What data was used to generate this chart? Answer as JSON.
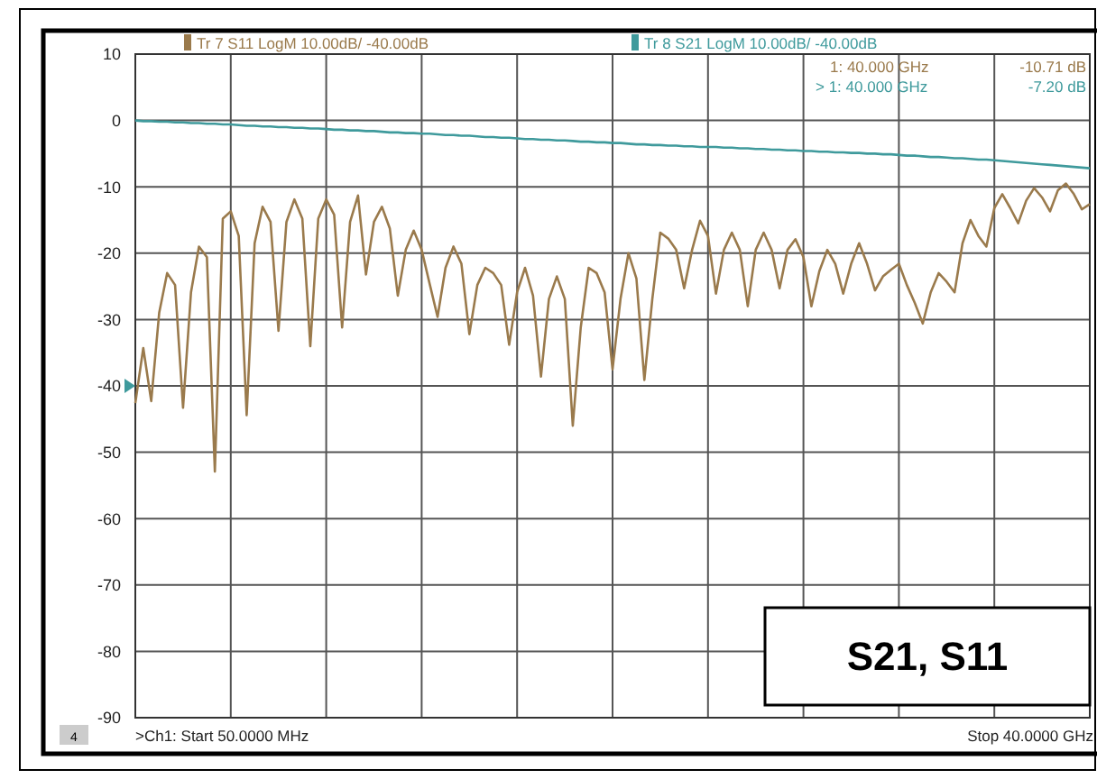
{
  "chart_data": {
    "type": "line",
    "categories": [
      null,
      null,
      null,
      null,
      null,
      null,
      null,
      null,
      null,
      null,
      null,
      null,
      null,
      null,
      null,
      null,
      null,
      null,
      null,
      null,
      null,
      null,
      null,
      null,
      null,
      null,
      null,
      null,
      null,
      null,
      null,
      null,
      null,
      null,
      null,
      null,
      null,
      null,
      null,
      null,
      null,
      null,
      null,
      null,
      null,
      null,
      null,
      null,
      null,
      null,
      null,
      null,
      null,
      null,
      null,
      null,
      null,
      null,
      null,
      null,
      null,
      null,
      null,
      null,
      null,
      null,
      null,
      null,
      null,
      null,
      null,
      null,
      null,
      null,
      null,
      null,
      null,
      null,
      null,
      null,
      null,
      null,
      null,
      null,
      null,
      null,
      null,
      null,
      null,
      null,
      null,
      null,
      null,
      null,
      null,
      null,
      null,
      null,
      null,
      null,
      null,
      null,
      null,
      null,
      null,
      null,
      null,
      null,
      null,
      null,
      null,
      null,
      null,
      null,
      null,
      null,
      null,
      null,
      null,
      null,
      null
    ],
    "ylim": [
      -90,
      10
    ],
    "yticks": [
      10,
      0,
      -10,
      -20,
      -30,
      -40,
      -50,
      -60,
      -70,
      -80,
      -90
    ],
    "tick_labels": "y",
    "grid": true,
    "legend": "top",
    "line_style": "solid",
    "series": [
      {
        "name": "Tr 7  S11 LogM 10.00dB/ -40.00dB",
        "color": "#9a7a4c",
        "values": [
          -42.6,
          -34.3,
          -42.3,
          -29,
          -23,
          -24.8,
          -43.3,
          -25.9,
          -19,
          -20.6,
          -52.9,
          -14.8,
          -13.7,
          -17.4,
          -44.4,
          -18.5,
          -13,
          -15.3,
          -31.7,
          -15.3,
          -11.9,
          -14.8,
          -34,
          -14.8,
          -11.9,
          -14.2,
          -31.2,
          -15.3,
          -11.3,
          -23.2,
          -15.3,
          -13,
          -16.3,
          -26.4,
          -19.5,
          -16.6,
          -19.5,
          -24.6,
          -29.6,
          -22.2,
          -19,
          -21.6,
          -32.2,
          -24.8,
          -22.2,
          -23,
          -24.8,
          -33.8,
          -25.9,
          -22.2,
          -26.4,
          -38.6,
          -26.9,
          -23.5,
          -26.9,
          -46,
          -31.2,
          -22.2,
          -23,
          -25.9,
          -37.5,
          -26.9,
          -20,
          -23.8,
          -39.1,
          -26.9,
          -16.9,
          -17.8,
          -19.5,
          -25.3,
          -19.5,
          -15.1,
          -17.4,
          -26.1,
          -19.5,
          -16.9,
          -19.5,
          -28,
          -19.5,
          -16.9,
          -19.5,
          -25.3,
          -19.5,
          -17.9,
          -20.6,
          -28,
          -22.7,
          -19.5,
          -21.6,
          -26.1,
          -21.6,
          -18.5,
          -21.6,
          -25.6,
          -23.5,
          -22.5,
          -21.6,
          -24.8,
          -27.5,
          -30.6,
          -25.9,
          -23,
          -24.3,
          -25.9,
          -18.5,
          -15,
          -17.4,
          -19,
          -13.2,
          -11.1,
          -13.2,
          -15.5,
          -12.1,
          -10.2,
          -11.6,
          -13.7,
          -10.5,
          -9.5,
          -11.1,
          -13.4,
          -12.6
        ]
      },
      {
        "name": "Tr 8  S21 LogM 10.00dB/ -40.00dB",
        "color": "#3f9a9c",
        "values": [
          0,
          -0.1,
          -0.1,
          -0.2,
          -0.2,
          -0.3,
          -0.3,
          -0.4,
          -0.4,
          -0.5,
          -0.5,
          -0.6,
          -0.6,
          -0.7,
          -0.8,
          -0.8,
          -0.9,
          -0.9,
          -1,
          -1,
          -1.1,
          -1.1,
          -1.2,
          -1.2,
          -1.3,
          -1.4,
          -1.4,
          -1.5,
          -1.5,
          -1.6,
          -1.6,
          -1.7,
          -1.8,
          -1.8,
          -1.9,
          -1.9,
          -2,
          -2,
          -2.1,
          -2.2,
          -2.2,
          -2.3,
          -2.3,
          -2.4,
          -2.5,
          -2.5,
          -2.6,
          -2.6,
          -2.7,
          -2.8,
          -2.8,
          -2.9,
          -2.9,
          -3,
          -3,
          -3.1,
          -3.2,
          -3.2,
          -3.3,
          -3.3,
          -3.4,
          -3.4,
          -3.5,
          -3.6,
          -3.6,
          -3.7,
          -3.7,
          -3.8,
          -3.8,
          -3.9,
          -3.9,
          -4,
          -4,
          -4,
          -4.1,
          -4.1,
          -4.2,
          -4.2,
          -4.3,
          -4.3,
          -4.4,
          -4.4,
          -4.5,
          -4.5,
          -4.6,
          -4.6,
          -4.7,
          -4.7,
          -4.8,
          -4.8,
          -4.9,
          -4.9,
          -5,
          -5,
          -5.1,
          -5.1,
          -5.2,
          -5.3,
          -5.3,
          -5.4,
          -5.5,
          -5.5,
          -5.6,
          -5.7,
          -5.7,
          -5.8,
          -5.9,
          -5.9,
          -6,
          -6.1,
          -6.2,
          -6.3,
          -6.4,
          -6.5,
          -6.6,
          -6.7,
          -6.8,
          -6.9,
          -7,
          -7.1,
          -7.2
        ]
      }
    ],
    "annotations": [
      "1:  40.000 GHz",
      "-10.71 dB",
      "> 1:  40.000 GHz",
      "-7.20 dB",
      ">Ch1: Start  50.0000 MHz",
      "Stop 40.0000 GHz",
      "S21, S11",
      "4"
    ]
  }
}
